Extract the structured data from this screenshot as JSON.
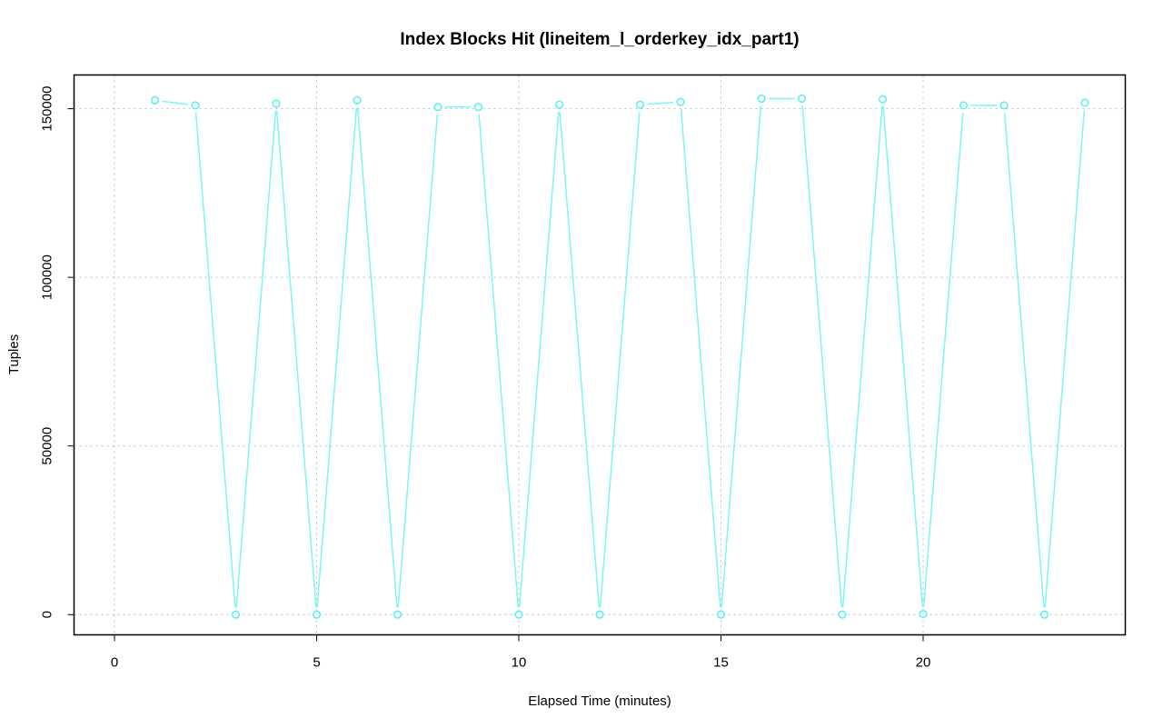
{
  "chart_data": {
    "type": "line",
    "title": "Index Blocks Hit (lineitem_l_orderkey_idx_part1)",
    "xlabel": "Elapsed Time (minutes)",
    "ylabel": "Tuples",
    "xlim": [
      -1,
      25
    ],
    "ylim": [
      -6000,
      160000
    ],
    "xticks": [
      0,
      5,
      10,
      15,
      20
    ],
    "yticks": [
      0,
      50000,
      100000,
      150000
    ],
    "xtick_labels": [
      "0",
      "5",
      "10",
      "15",
      "20"
    ],
    "ytick_labels": [
      "0",
      "50000",
      "100000",
      "150000"
    ],
    "grid": true,
    "series": [
      {
        "color": "#7ff5f5",
        "marker": "open-circle",
        "x": [
          1,
          2,
          3,
          4,
          5,
          6,
          7,
          8,
          9,
          10,
          11,
          12,
          13,
          14,
          15,
          16,
          17,
          18,
          19,
          20,
          21,
          22,
          23,
          24
        ],
        "y": [
          152500,
          151000,
          0,
          151500,
          0,
          152500,
          0,
          150500,
          150500,
          0,
          151200,
          0,
          151200,
          152000,
          0,
          153000,
          153000,
          0,
          152800,
          200,
          151000,
          151000,
          0,
          151800
        ]
      }
    ]
  }
}
